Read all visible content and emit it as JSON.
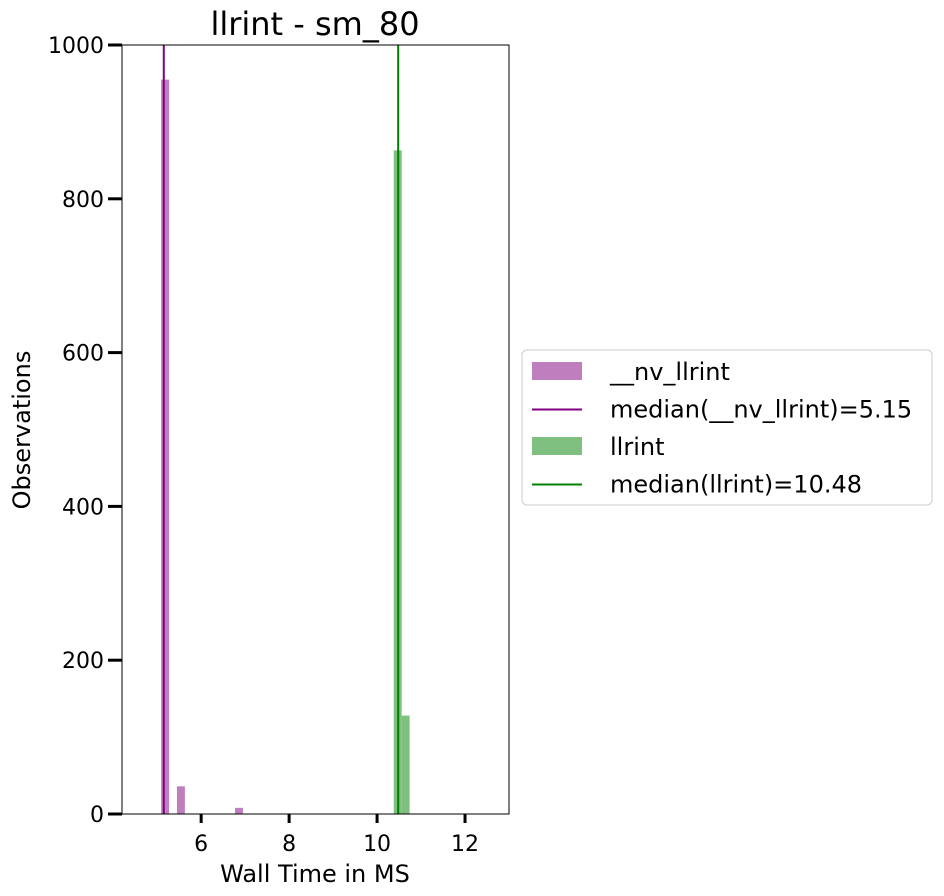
{
  "chart_data": {
    "type": "bar",
    "title": "llrint - sm_80",
    "xlabel": "Wall Time in MS",
    "ylabel": "Observations",
    "xlim": [
      4.2,
      13.0
    ],
    "ylim": [
      0,
      1000
    ],
    "xticks": [
      6,
      8,
      10,
      12
    ],
    "yticks": [
      0,
      200,
      400,
      600,
      800,
      1000
    ],
    "grid": false,
    "legend_position": "outside-right",
    "series": [
      {
        "name": "__nv_llrint",
        "color": "#bf7fbf",
        "bin_width": 0.18,
        "bins": [
          {
            "x": 5.09,
            "count": 955
          },
          {
            "x": 5.45,
            "count": 36
          },
          {
            "x": 6.77,
            "count": 8
          }
        ]
      },
      {
        "name": "llrint",
        "color": "#7fbf7f",
        "bin_width": 0.18,
        "bins": [
          {
            "x": 10.38,
            "count": 863
          },
          {
            "x": 10.56,
            "count": 128
          }
        ]
      }
    ],
    "medians": [
      {
        "label": "median(__nv_llrint)=5.15",
        "value": 5.15,
        "color": "#800080"
      },
      {
        "label": "median(llrint)=10.48",
        "value": 10.48,
        "color": "#008000"
      }
    ],
    "legend": [
      {
        "label": "__nv_llrint",
        "kind": "patch",
        "color": "#bf7fbf"
      },
      {
        "label": "median(__nv_llrint)=5.15",
        "kind": "line",
        "color": "#800080"
      },
      {
        "label": "llrint",
        "kind": "patch",
        "color": "#7fbf7f"
      },
      {
        "label": "median(llrint)=10.48",
        "kind": "line",
        "color": "#008000"
      }
    ]
  }
}
